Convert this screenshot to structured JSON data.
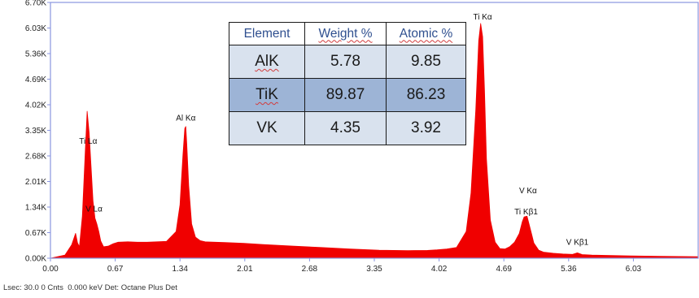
{
  "chart_data": {
    "type": "line",
    "title": "",
    "xlabel": "",
    "ylabel": "",
    "xlim": [
      0,
      6.7
    ],
    "ylim": [
      0,
      6700
    ],
    "grid": false,
    "x_tick_labels": [
      "0.00",
      "0.67",
      "1.34",
      "2.01",
      "2.68",
      "3.35",
      "4.02",
      "4.69",
      "5.36",
      "6.03"
    ],
    "x_tick_values": [
      0,
      0.67,
      1.34,
      2.01,
      2.68,
      3.35,
      4.02,
      4.69,
      5.36,
      6.03
    ],
    "y_tick_labels": [
      "0.00K",
      "0.67K",
      "1.34K",
      "2.01K",
      "2.68K",
      "3.35K",
      "4.02K",
      "4.69K",
      "5.36K",
      "6.03K",
      "6.70K"
    ],
    "y_tick_values": [
      0,
      670,
      1340,
      2010,
      2680,
      3350,
      4020,
      4690,
      5360,
      6030,
      6700
    ],
    "fill_color": "#f00000",
    "frame_color": "#8a96e0",
    "series": [
      {
        "x": [
          0.0,
          0.15,
          0.22,
          0.26,
          0.28,
          0.3,
          0.33,
          0.36,
          0.38,
          0.4,
          0.42,
          0.44,
          0.46,
          0.48,
          0.5,
          0.52,
          0.55,
          0.6,
          0.65,
          0.7,
          0.8,
          0.9,
          1.0,
          1.1,
          1.2,
          1.3,
          1.34,
          1.37,
          1.39,
          1.4,
          1.41,
          1.43,
          1.46,
          1.5,
          1.55,
          1.6,
          1.8,
          2.0,
          2.2,
          2.5,
          2.8,
          3.1,
          3.4,
          3.7,
          3.9,
          4.0,
          4.1,
          4.2,
          4.3,
          4.35,
          4.4,
          4.43,
          4.45,
          4.47,
          4.49,
          4.51,
          4.55,
          4.6,
          4.65,
          4.7,
          4.75,
          4.8,
          4.85,
          4.88,
          4.9,
          4.93,
          4.95,
          4.98,
          5.0,
          5.05,
          5.1,
          5.2,
          5.3,
          5.4,
          5.45,
          5.5,
          5.6,
          5.8,
          6.0,
          6.3,
          6.7
        ],
        "y": [
          0,
          80,
          350,
          650,
          400,
          300,
          1100,
          2800,
          3850,
          3300,
          2400,
          1500,
          1050,
          900,
          700,
          450,
          300,
          320,
          380,
          420,
          430,
          420,
          420,
          430,
          440,
          700,
          1400,
          2700,
          3400,
          3450,
          3000,
          1900,
          900,
          550,
          460,
          430,
          410,
          390,
          360,
          320,
          280,
          240,
          210,
          200,
          205,
          220,
          240,
          280,
          700,
          1700,
          3900,
          5700,
          6150,
          5800,
          4400,
          2600,
          1000,
          420,
          250,
          240,
          300,
          420,
          650,
          950,
          1080,
          1100,
          900,
          600,
          400,
          210,
          160,
          130,
          110,
          100,
          140,
          95,
          80,
          70,
          60,
          50,
          40
        ]
      }
    ],
    "annotations": [
      {
        "text": "Ti Lα",
        "x": 0.39,
        "y": 3000
      },
      {
        "text": "V  Lα",
        "x": 0.45,
        "y": 1220
      },
      {
        "text": "Al Kα",
        "x": 1.4,
        "y": 3600
      },
      {
        "text": "Ti Kα",
        "x": 4.47,
        "y": 6250
      },
      {
        "text": "V  Kα",
        "x": 4.94,
        "y": 1700
      },
      {
        "text": "Ti Kβ1",
        "x": 4.92,
        "y": 1150
      },
      {
        "text": "V  Kβ1",
        "x": 5.45,
        "y": 350
      }
    ]
  },
  "results_table": {
    "headers": [
      "Element",
      "Weight %",
      "Atomic %"
    ],
    "rows": [
      {
        "element": "AlK",
        "weight": "5.78",
        "atomic": "9.85"
      },
      {
        "element": "TiK",
        "weight": "89.87",
        "atomic": "86.23"
      },
      {
        "element": "VK",
        "weight": "4.35",
        "atomic": "3.92"
      }
    ]
  },
  "status_bar": {
    "text": "Lsec: 30.0 0 Cnts  0.000 keV Det: Octane Plus Det"
  }
}
